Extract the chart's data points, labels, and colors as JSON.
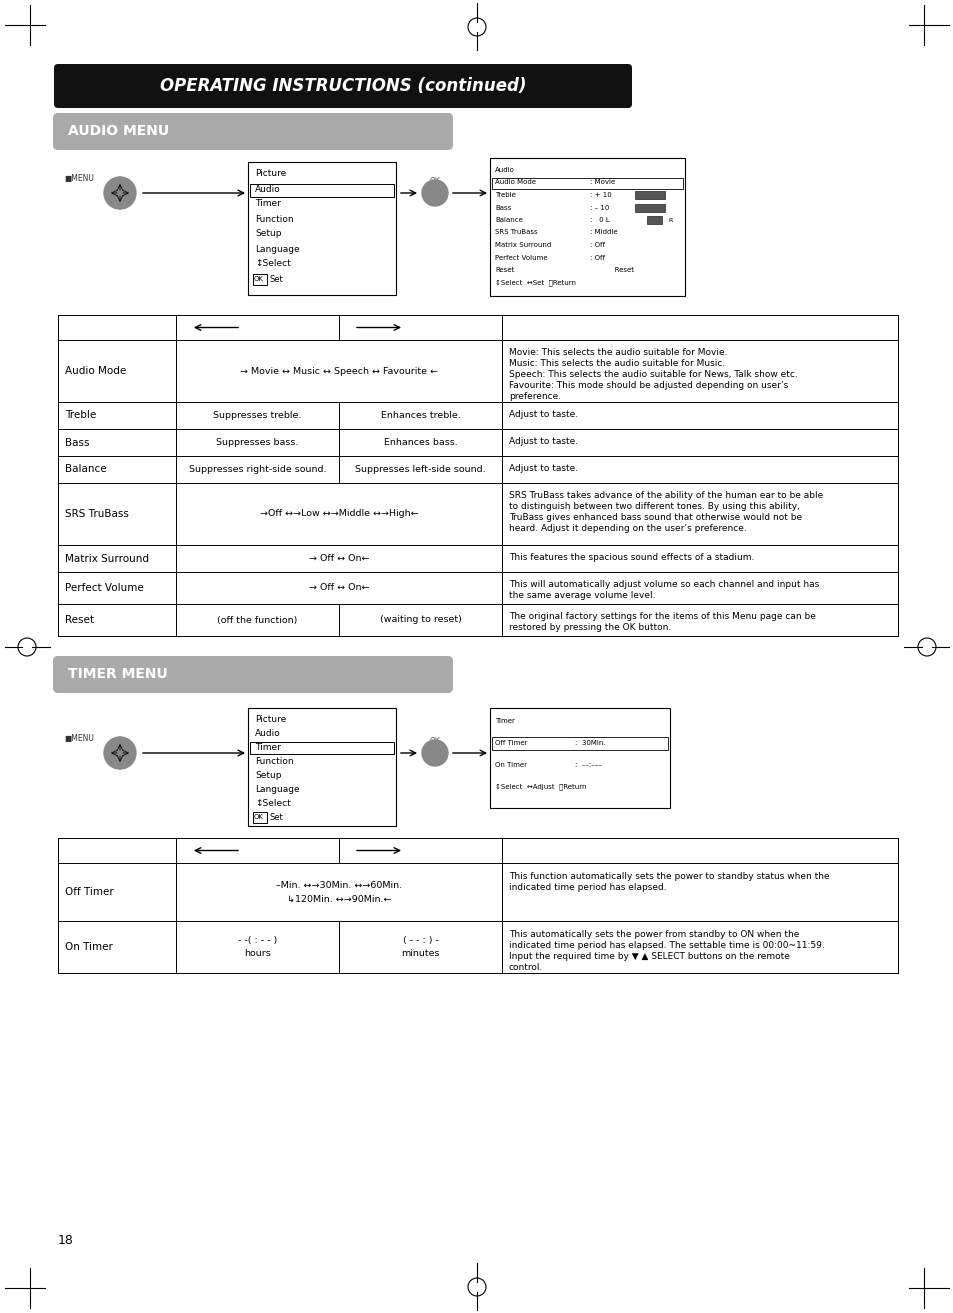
{
  "page_bg": "#ffffff",
  "main_title": "OPERATING INSTRUCTIONS (continued)",
  "audio_menu_title": "AUDIO MENU",
  "timer_menu_title": "TIMER MENU",
  "audio_table_rows": [
    {
      "col0": "Audio Mode",
      "col1": "→ Movie ↔ Music ↔ Speech ↔ Favourite ←",
      "col2": "",
      "col3": "Movie: This selects the audio suitable for Movie.\nMusic: This selects the audio suitable for Music.\nSpeech: This selects the audio suitable for News, Talk show etc.\nFavourite: This mode should be adjusted depending on user’s\npreference."
    },
    {
      "col0": "Treble",
      "col1": "Suppresses treble.",
      "col2": "Enhances treble.",
      "col3": "Adjust to taste."
    },
    {
      "col0": "Bass",
      "col1": "Suppresses bass.",
      "col2": "Enhances bass.",
      "col3": "Adjust to taste."
    },
    {
      "col0": "Balance",
      "col1": "Suppresses right-side sound.",
      "col2": "Suppresses left-side sound.",
      "col3": "Adjust to taste."
    },
    {
      "col0": "SRS TruBass",
      "col1": "→Off ↔→Low ↔→Middle ↔→High←",
      "col2": "",
      "col3": "SRS TruBass takes advance of the ability of the human ear to be able\nto distinguish between two different tones. By using this ability,\nTruBass gives enhanced bass sound that otherwise would not be\nheard. Adjust it depending on the user’s preference."
    },
    {
      "col0": "Matrix Surround",
      "col1": "→ Off ↔ On←",
      "col2": "",
      "col3": "This features the spacious sound effects of a stadium."
    },
    {
      "col0": "Perfect Volume",
      "col1": "→ Off ↔ On←",
      "col2": "",
      "col3": "This will automatically adjust volume so each channel and input has\nthe same average volume level."
    },
    {
      "col0": "Reset",
      "col1": "(off the function)",
      "col2": "(waiting to reset)",
      "col3": "The original factory settings for the items of this Menu page can be\nrestored by pressing the OK button."
    }
  ],
  "timer_table_rows": [
    {
      "col0": "Off Timer",
      "col1": "–Min. ↔→30Min. ↔→60Min.\n↳120Min. ↔→90Min.←",
      "col2": "",
      "col3": "This function automatically sets the power to standby status when the\nindicated time period has elapsed."
    },
    {
      "col0": "On Timer",
      "col1": "- -( : - - )\nhours",
      "col2": "( - - : ) -\nminutes",
      "col3": "This automatically sets the power from standby to ON when the\nindicated time period has elapsed. The settable time is 00:00~11:59.\nInput the required time by ▼ ▲ SELECT buttons on the remote\ncontrol."
    }
  ],
  "page_number": "18"
}
